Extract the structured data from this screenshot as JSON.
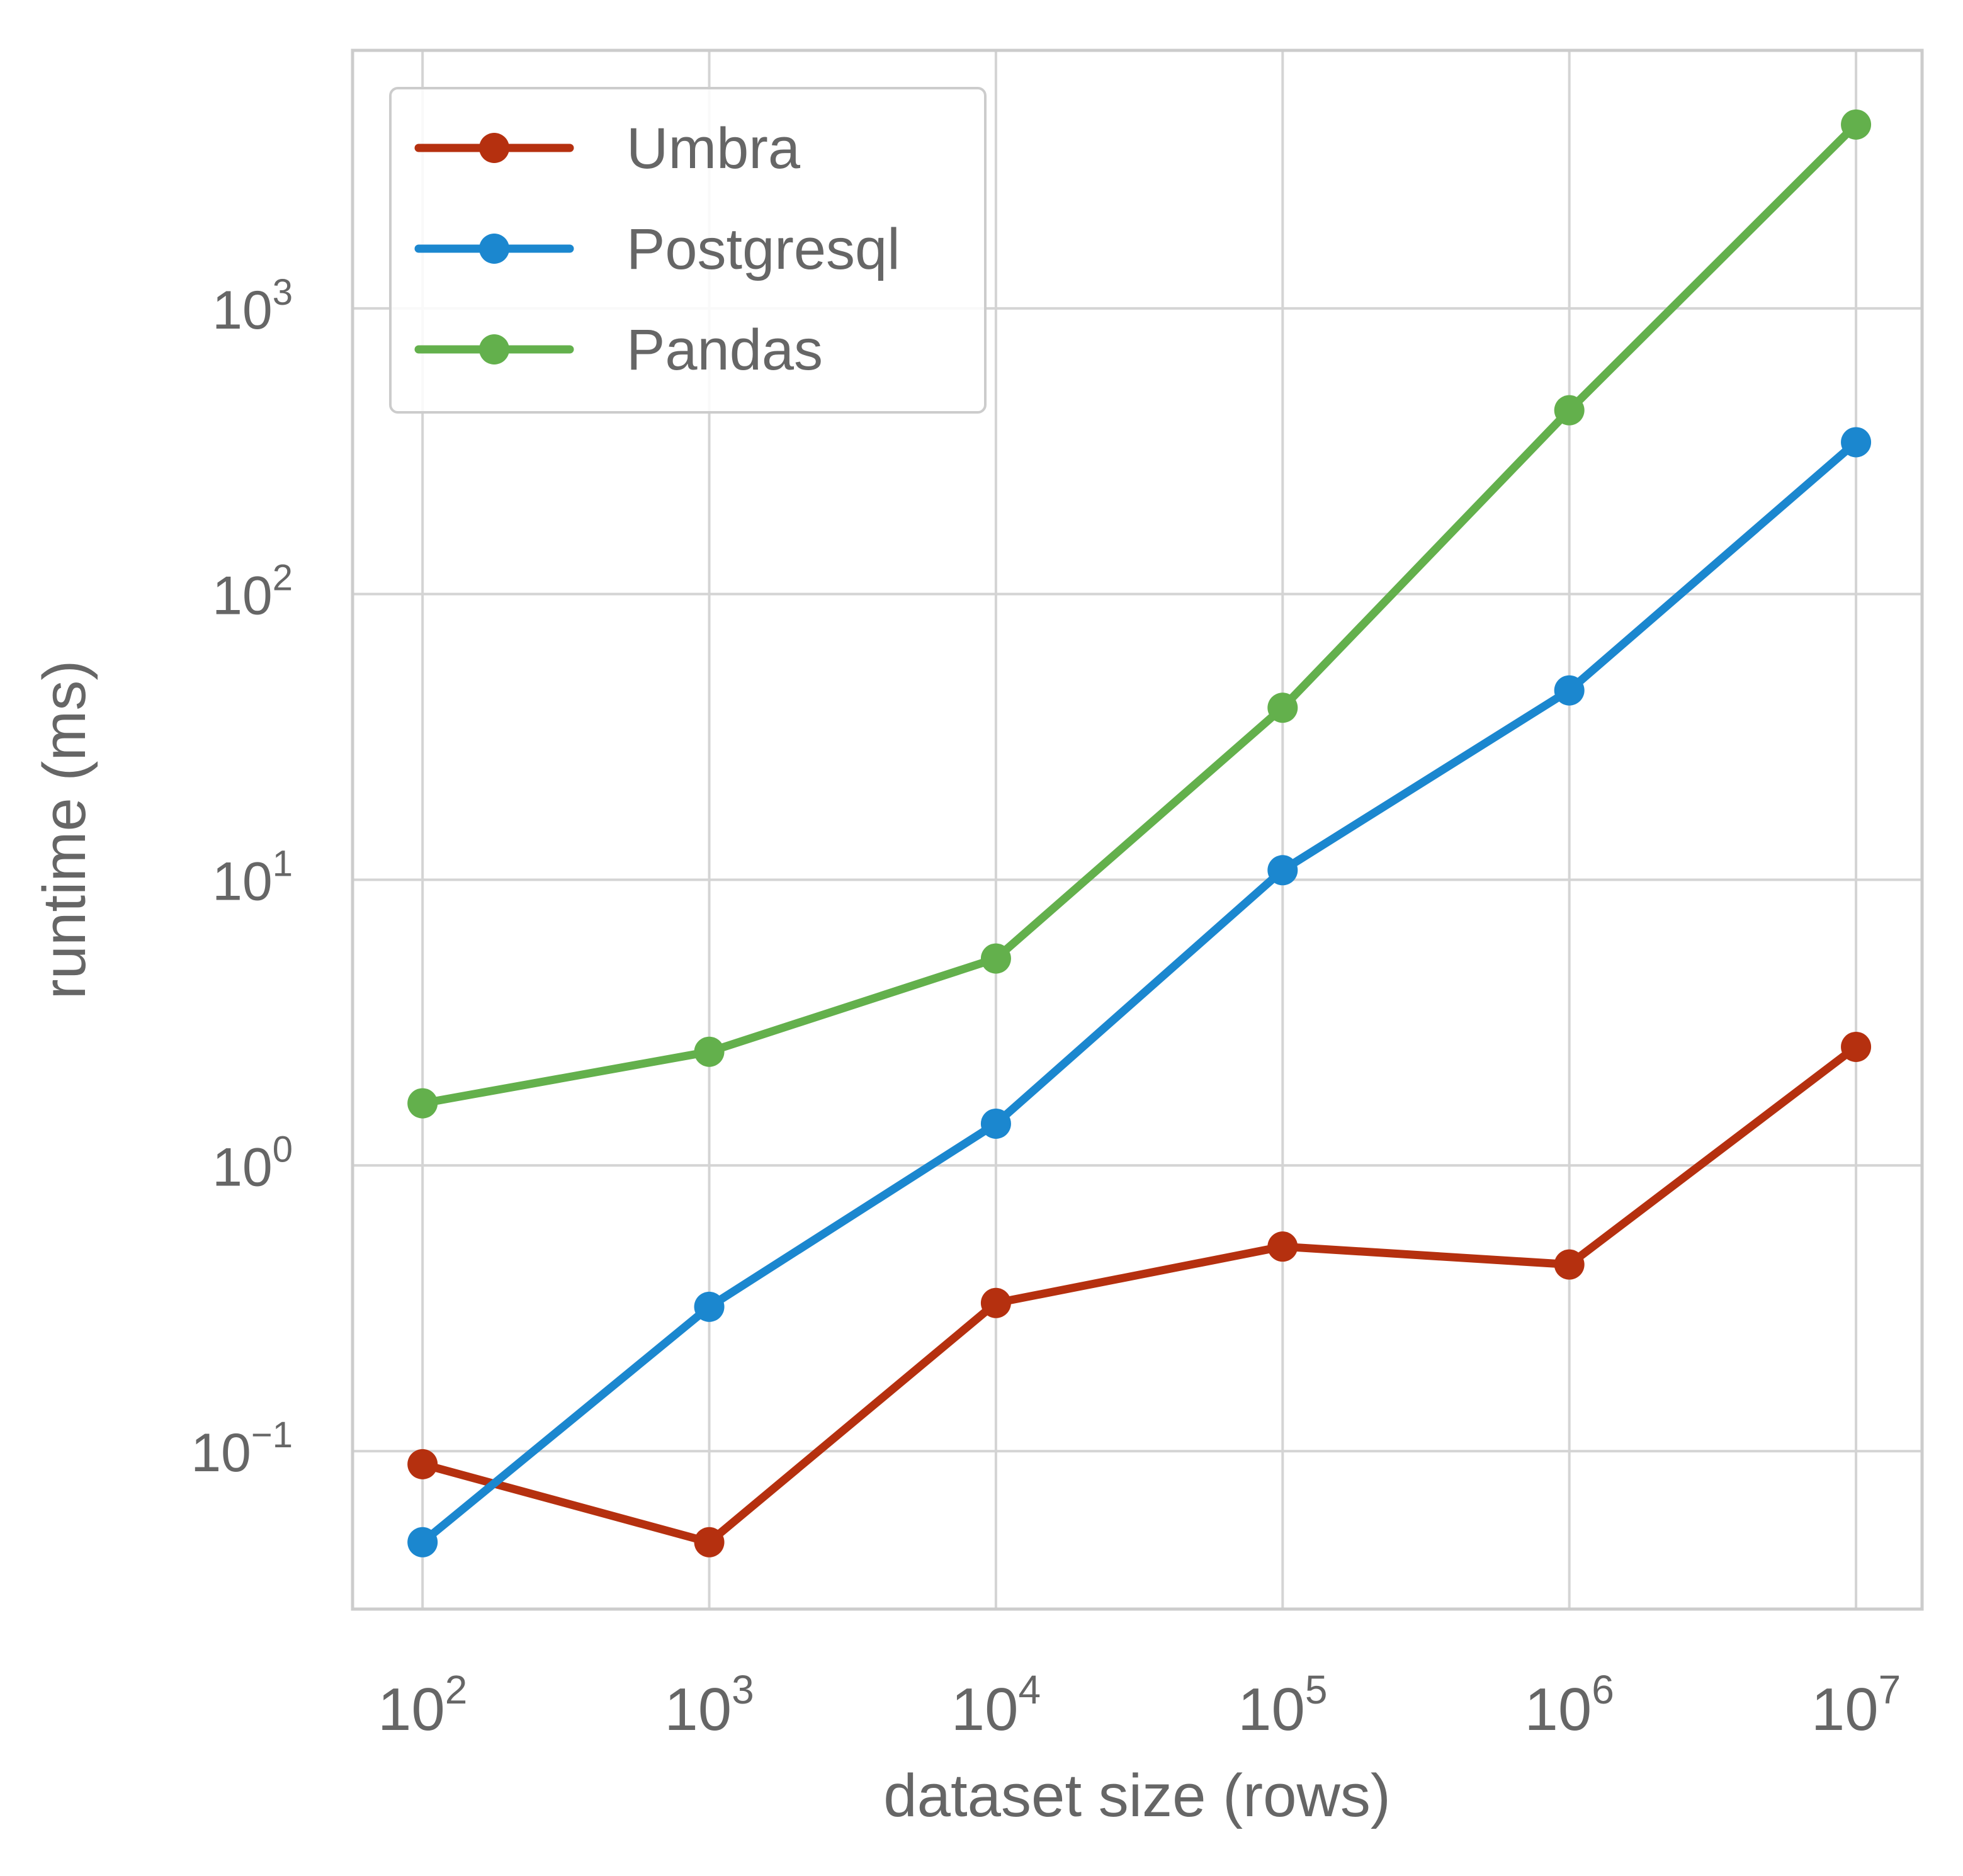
{
  "chart_data": {
    "type": "line",
    "title": "",
    "xlabel": "dataset size (rows)",
    "ylabel": "runtime (ms)",
    "x_scale": "log",
    "y_scale": "log",
    "x": [
      100,
      1000,
      10000,
      100000,
      1000000,
      10000000
    ],
    "x_tick_exponents": [
      "2",
      "3",
      "4",
      "5",
      "6",
      "7"
    ],
    "y_tick_exponents": [
      "−1",
      "0",
      "1",
      "2",
      "3"
    ],
    "tick_base": "10",
    "ylim": [
      0.028,
      8000
    ],
    "xlim": [
      57,
      17000000
    ],
    "grid": true,
    "legend_position": "top-left",
    "series": [
      {
        "name": "Umbra",
        "color": "#b5300f",
        "values": [
          0.09,
          0.048,
          0.33,
          0.52,
          0.45,
          2.6
        ]
      },
      {
        "name": "Postgresql",
        "color": "#1b87cf",
        "values": [
          0.048,
          0.32,
          1.4,
          10.8,
          46,
          340
        ]
      },
      {
        "name": "Pandas",
        "color": "#63b04c",
        "values": [
          1.65,
          2.5,
          5.3,
          40,
          440,
          4400
        ]
      }
    ]
  }
}
